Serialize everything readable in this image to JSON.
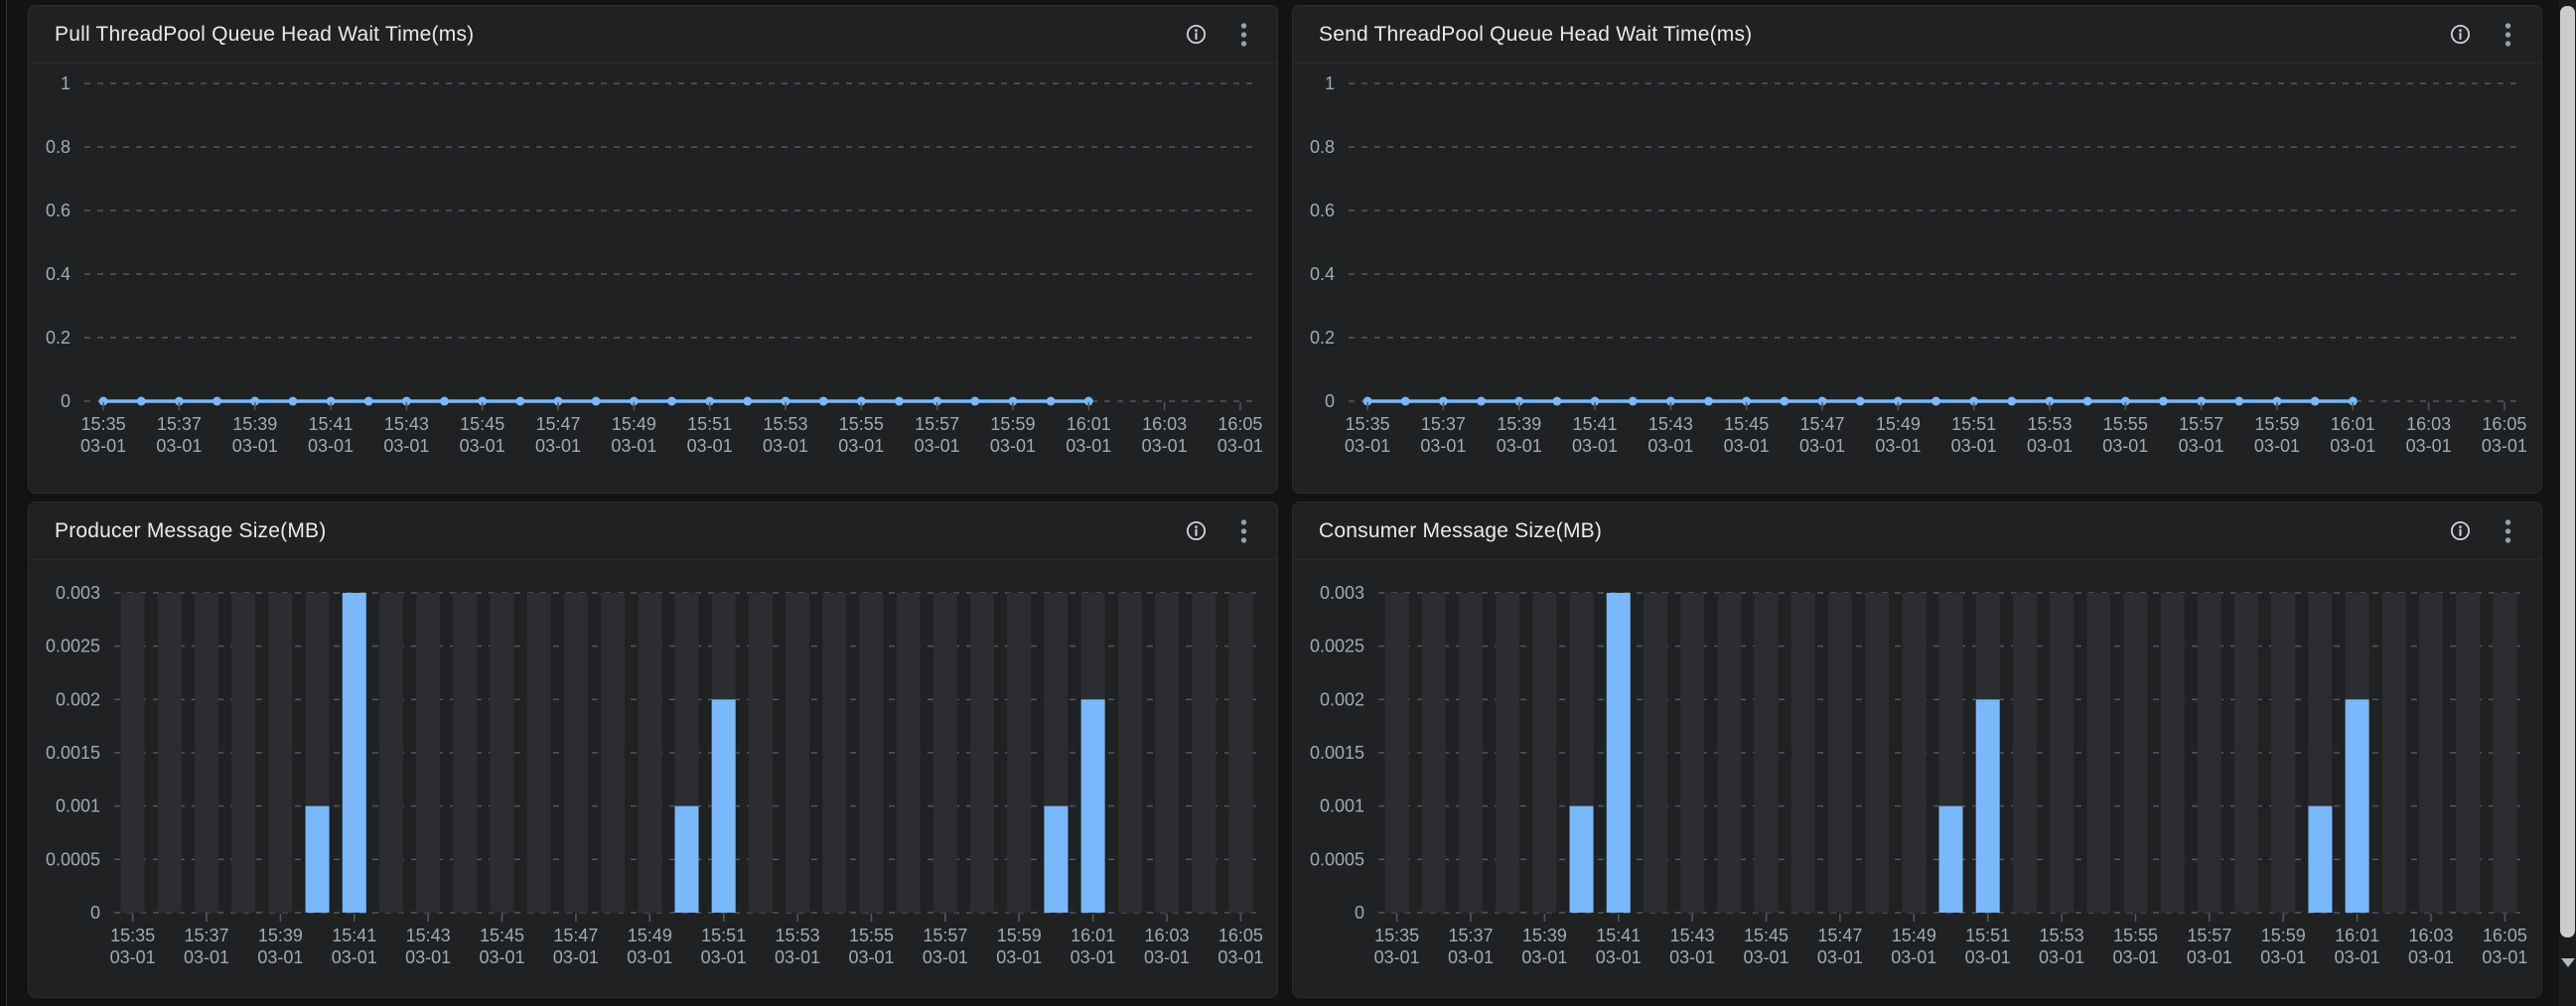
{
  "colors": {
    "accent_blue": "#79b8fb",
    "page_bg": "#131314",
    "panel_bg": "#1f2123",
    "panel_border": "#2b2d30",
    "grid_line": "#55585d",
    "axis_text": "#a3a9b5",
    "title_text": "#e8eaec",
    "bg_bar": "#2b2d30",
    "tick_line": "#53565b",
    "info_icon": "#d2d5da",
    "more_icon": "#9aa0a7",
    "scrollbar_thumb": "#cbcccd",
    "scrollbar_arrow": "#b4b7bb"
  },
  "panel_actions": [
    {
      "icon": "info-icon"
    },
    {
      "icon": "more-menu-icon"
    }
  ],
  "panels": [
    {
      "title": "Pull ThreadPool Queue Head Wait Time(ms)"
    },
    {
      "title": "Send ThreadPool Queue Head Wait Time(ms)"
    },
    {
      "title": "Producer Message Size(MB)"
    },
    {
      "title": "Consumer Message Size(MB)"
    }
  ],
  "chart_data": [
    {
      "type": "line",
      "title": "Pull ThreadPool Queue Head Wait Time(ms)",
      "date_label": "03-01",
      "x_slots": [
        "15:35",
        "15:36",
        "15:37",
        "15:38",
        "15:39",
        "15:40",
        "15:41",
        "15:42",
        "15:43",
        "15:44",
        "15:45",
        "15:46",
        "15:47",
        "15:48",
        "15:49",
        "15:50",
        "15:51",
        "15:52",
        "15:53",
        "15:54",
        "15:55",
        "15:56",
        "15:57",
        "15:58",
        "15:59",
        "16:00",
        "16:01",
        "16:02",
        "16:03",
        "16:04",
        "16:05"
      ],
      "x_label_every": 2,
      "y_ticks": [
        0,
        0.2,
        0.4,
        0.6,
        0.8,
        1
      ],
      "y_tick_labels": [
        "0",
        "0.2",
        "0.4",
        "0.6",
        "0.8",
        "1"
      ],
      "ylim": [
        0,
        1
      ],
      "grid": "dashed",
      "legend": "none",
      "series": [
        {
          "name": "pull-wait-time-ms",
          "x_times": [
            "15:35",
            "15:36",
            "15:37",
            "15:38",
            "15:39",
            "15:40",
            "15:41",
            "15:42",
            "15:43",
            "15:44",
            "15:45",
            "15:46",
            "15:47",
            "15:48",
            "15:49",
            "15:50",
            "15:51",
            "15:52",
            "15:53",
            "15:54",
            "15:55",
            "15:56",
            "15:57",
            "15:58",
            "15:59",
            "16:00",
            "16:01"
          ],
          "values": [
            0,
            0,
            0,
            0,
            0,
            0,
            0,
            0,
            0,
            0,
            0,
            0,
            0,
            0,
            0,
            0,
            0,
            0,
            0,
            0,
            0,
            0,
            0,
            0,
            0,
            0,
            0
          ]
        }
      ]
    },
    {
      "type": "line",
      "title": "Send ThreadPool Queue Head Wait Time(ms)",
      "date_label": "03-01",
      "x_slots": [
        "15:35",
        "15:36",
        "15:37",
        "15:38",
        "15:39",
        "15:40",
        "15:41",
        "15:42",
        "15:43",
        "15:44",
        "15:45",
        "15:46",
        "15:47",
        "15:48",
        "15:49",
        "15:50",
        "15:51",
        "15:52",
        "15:53",
        "15:54",
        "15:55",
        "15:56",
        "15:57",
        "15:58",
        "15:59",
        "16:00",
        "16:01",
        "16:02",
        "16:03",
        "16:04",
        "16:05"
      ],
      "x_label_every": 2,
      "y_ticks": [
        0,
        0.2,
        0.4,
        0.6,
        0.8,
        1
      ],
      "y_tick_labels": [
        "0",
        "0.2",
        "0.4",
        "0.6",
        "0.8",
        "1"
      ],
      "ylim": [
        0,
        1
      ],
      "grid": "dashed",
      "legend": "none",
      "series": [
        {
          "name": "send-wait-time-ms",
          "x_times": [
            "15:35",
            "15:36",
            "15:37",
            "15:38",
            "15:39",
            "15:40",
            "15:41",
            "15:42",
            "15:43",
            "15:44",
            "15:45",
            "15:46",
            "15:47",
            "15:48",
            "15:49",
            "15:50",
            "15:51",
            "15:52",
            "15:53",
            "15:54",
            "15:55",
            "15:56",
            "15:57",
            "15:58",
            "15:59",
            "16:00",
            "16:01"
          ],
          "values": [
            0,
            0,
            0,
            0,
            0,
            0,
            0,
            0,
            0,
            0,
            0,
            0,
            0,
            0,
            0,
            0,
            0,
            0,
            0,
            0,
            0,
            0,
            0,
            0,
            0,
            0,
            0
          ]
        }
      ]
    },
    {
      "type": "bar",
      "title": "Producer Message Size(MB)",
      "date_label": "03-01",
      "x_slots": [
        "15:35",
        "15:36",
        "15:37",
        "15:38",
        "15:39",
        "15:40",
        "15:41",
        "15:42",
        "15:43",
        "15:44",
        "15:45",
        "15:46",
        "15:47",
        "15:48",
        "15:49",
        "15:50",
        "15:51",
        "15:52",
        "15:53",
        "15:54",
        "15:55",
        "15:56",
        "15:57",
        "15:58",
        "15:59",
        "16:00",
        "16:01",
        "16:02",
        "16:03",
        "16:04",
        "16:05"
      ],
      "x_label_every": 2,
      "y_ticks": [
        0,
        0.0005,
        0.001,
        0.0015,
        0.002,
        0.0025,
        0.003
      ],
      "y_tick_labels": [
        "0",
        "0.0005",
        "0.001",
        "0.0015",
        "0.002",
        "0.0025",
        "0.003"
      ],
      "ylim": [
        0,
        0.003
      ],
      "grid": "dashed",
      "legend": "none",
      "background_bars": "all_slots",
      "series": [
        {
          "name": "producer-message-size-mb",
          "values": [
            0,
            0,
            0,
            0,
            0,
            0.001,
            0.003,
            0,
            0,
            0,
            0,
            0,
            0,
            0,
            0,
            0.001,
            0.002,
            0,
            0,
            0,
            0,
            0,
            0,
            0,
            0,
            0.001,
            0.002,
            0,
            0,
            0,
            0
          ]
        }
      ]
    },
    {
      "type": "bar",
      "title": "Consumer Message Size(MB)",
      "date_label": "03-01",
      "x_slots": [
        "15:35",
        "15:36",
        "15:37",
        "15:38",
        "15:39",
        "15:40",
        "15:41",
        "15:42",
        "15:43",
        "15:44",
        "15:45",
        "15:46",
        "15:47",
        "15:48",
        "15:49",
        "15:50",
        "15:51",
        "15:52",
        "15:53",
        "15:54",
        "15:55",
        "15:56",
        "15:57",
        "15:58",
        "15:59",
        "16:00",
        "16:01",
        "16:02",
        "16:03",
        "16:04",
        "16:05"
      ],
      "x_label_every": 2,
      "y_ticks": [
        0,
        0.0005,
        0.001,
        0.0015,
        0.002,
        0.0025,
        0.003
      ],
      "y_tick_labels": [
        "0",
        "0.0005",
        "0.001",
        "0.0015",
        "0.002",
        "0.0025",
        "0.003"
      ],
      "ylim": [
        0,
        0.003
      ],
      "grid": "dashed",
      "legend": "none",
      "background_bars": "all_slots",
      "series": [
        {
          "name": "consumer-message-size-mb",
          "values": [
            0,
            0,
            0,
            0,
            0,
            0.001,
            0.003,
            0,
            0,
            0,
            0,
            0,
            0,
            0,
            0,
            0.001,
            0.002,
            0,
            0,
            0,
            0,
            0,
            0,
            0,
            0,
            0.001,
            0.002,
            0,
            0,
            0,
            0
          ]
        }
      ]
    }
  ]
}
